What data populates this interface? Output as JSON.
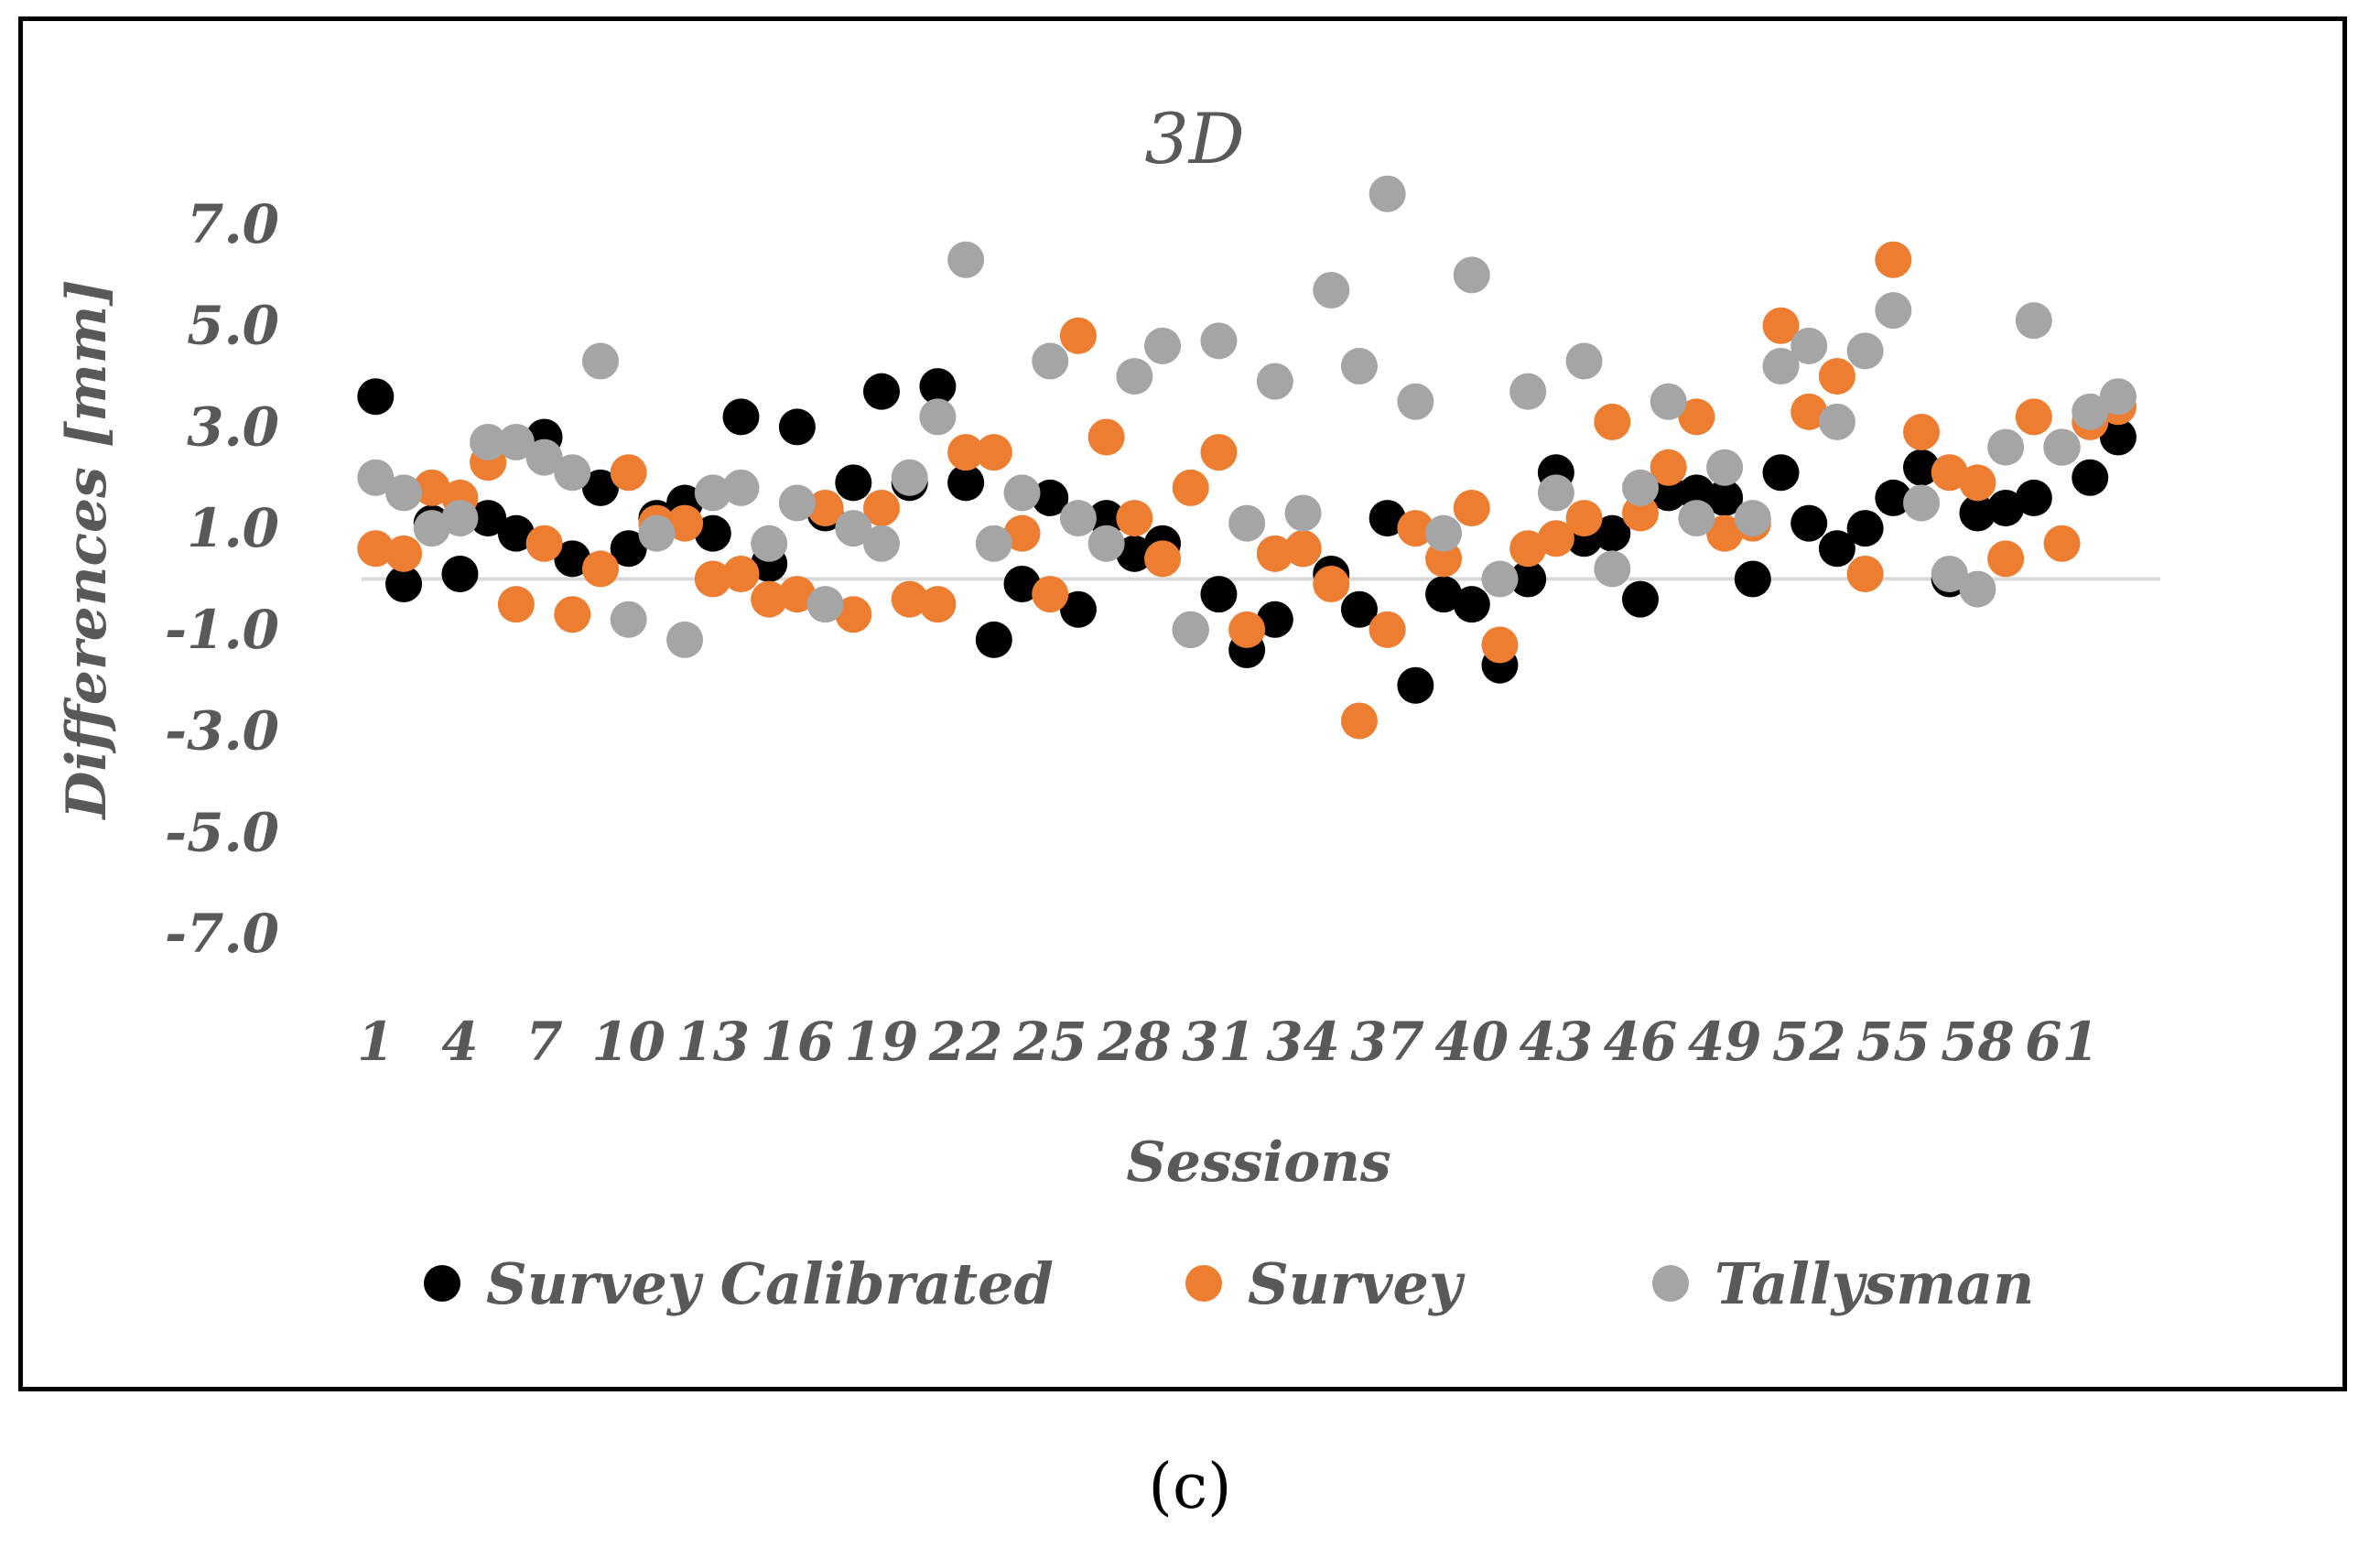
{
  "caption": "(c)",
  "chart_data": {
    "type": "scatter",
    "title": "3D",
    "xlabel": "Sessions",
    "ylabel": "Differences [mm]",
    "ylim": [
      -7.0,
      7.0
    ],
    "yticks": [
      "7.0",
      "5.0",
      "3.0",
      "1.0",
      "-1.0",
      "-3.0",
      "-5.0",
      "-7.0"
    ],
    "ytick_values": [
      7,
      5,
      3,
      1,
      -1,
      -3,
      -5,
      -7
    ],
    "xticks": [
      "1",
      "4",
      "7",
      "10",
      "13",
      "16",
      "19",
      "22",
      "25",
      "28",
      "31",
      "34",
      "37",
      "40",
      "43",
      "46",
      "49",
      "52",
      "55",
      "58",
      "61"
    ],
    "xtick_values": [
      1,
      4,
      7,
      10,
      13,
      16,
      19,
      22,
      25,
      28,
      31,
      34,
      37,
      40,
      43,
      46,
      49,
      52,
      55,
      58,
      61
    ],
    "xlim": [
      0.5,
      64.5
    ],
    "baseline": 0,
    "legend_position": "bottom",
    "series": [
      {
        "name": "Survey Calibrated",
        "color": "#000000",
        "points": [
          [
            1,
            3.6
          ],
          [
            2,
            -0.1
          ],
          [
            3,
            1.1
          ],
          [
            4,
            0.1
          ],
          [
            5,
            1.2
          ],
          [
            6,
            0.9
          ],
          [
            7,
            2.8
          ],
          [
            8,
            0.4
          ],
          [
            9,
            1.8
          ],
          [
            10,
            0.6
          ],
          [
            11,
            1.2
          ],
          [
            12,
            1.5
          ],
          [
            13,
            0.9
          ],
          [
            14,
            3.2
          ],
          [
            15,
            0.3
          ],
          [
            16,
            3.0
          ],
          [
            17,
            1.3
          ],
          [
            18,
            1.9
          ],
          [
            19,
            3.7
          ],
          [
            20,
            1.9
          ],
          [
            21,
            3.8
          ],
          [
            22,
            1.9
          ],
          [
            23,
            -1.2
          ],
          [
            24,
            -0.1
          ],
          [
            25,
            1.6
          ],
          [
            26,
            -0.6
          ],
          [
            27,
            1.2
          ],
          [
            28,
            0.5
          ],
          [
            29,
            0.7
          ],
          [
            30,
            -1.0
          ],
          [
            31,
            -0.3
          ],
          [
            32,
            -1.4
          ],
          [
            33,
            -0.8
          ],
          [
            34,
            0.6
          ],
          [
            35,
            0.1
          ],
          [
            36,
            -0.6
          ],
          [
            37,
            1.2
          ],
          [
            38,
            -2.1
          ],
          [
            39,
            -0.3
          ],
          [
            40,
            -0.5
          ],
          [
            41,
            -1.7
          ],
          [
            42,
            0.0
          ],
          [
            43,
            2.1
          ],
          [
            44,
            0.8
          ],
          [
            45,
            0.9
          ],
          [
            46,
            -0.4
          ],
          [
            47,
            1.7
          ],
          [
            48,
            1.7
          ],
          [
            49,
            1.6
          ],
          [
            50,
            0.0
          ],
          [
            51,
            2.1
          ],
          [
            52,
            1.1
          ],
          [
            53,
            0.6
          ],
          [
            54,
            1.0
          ],
          [
            55,
            1.6
          ],
          [
            56,
            2.2
          ],
          [
            57,
            0.0
          ],
          [
            58,
            1.3
          ],
          [
            59,
            1.4
          ],
          [
            60,
            1.6
          ],
          [
            61,
            2.6
          ],
          [
            62,
            2.0
          ],
          [
            63,
            2.8
          ]
        ]
      },
      {
        "name": "Survey",
        "color": "#ED7D31",
        "points": [
          [
            1,
            0.6
          ],
          [
            2,
            0.5
          ],
          [
            3,
            1.8
          ],
          [
            4,
            1.6
          ],
          [
            5,
            2.3
          ],
          [
            6,
            -0.5
          ],
          [
            7,
            0.7
          ],
          [
            8,
            -0.7
          ],
          [
            9,
            0.2
          ],
          [
            10,
            2.1
          ],
          [
            11,
            1.1
          ],
          [
            12,
            1.1
          ],
          [
            13,
            0.0
          ],
          [
            14,
            0.1
          ],
          [
            15,
            -0.4
          ],
          [
            16,
            -0.3
          ],
          [
            17,
            1.4
          ],
          [
            18,
            -0.7
          ],
          [
            19,
            1.4
          ],
          [
            20,
            -0.4
          ],
          [
            21,
            -0.5
          ],
          [
            22,
            2.5
          ],
          [
            23,
            2.5
          ],
          [
            24,
            0.9
          ],
          [
            25,
            -0.3
          ],
          [
            26,
            4.8
          ],
          [
            27,
            2.8
          ],
          [
            28,
            1.2
          ],
          [
            29,
            0.4
          ],
          [
            30,
            1.8
          ],
          [
            31,
            2.5
          ],
          [
            32,
            -1.0
          ],
          [
            33,
            0.5
          ],
          [
            34,
            0.6
          ],
          [
            35,
            -0.1
          ],
          [
            36,
            -2.8
          ],
          [
            37,
            -1.0
          ],
          [
            38,
            1.0
          ],
          [
            39,
            0.4
          ],
          [
            40,
            1.4
          ],
          [
            41,
            -1.3
          ],
          [
            42,
            0.6
          ],
          [
            43,
            0.8
          ],
          [
            44,
            1.2
          ],
          [
            45,
            3.1
          ],
          [
            46,
            1.3
          ],
          [
            47,
            2.2
          ],
          [
            48,
            3.2
          ],
          [
            49,
            0.9
          ],
          [
            50,
            1.1
          ],
          [
            51,
            5.0
          ],
          [
            52,
            3.3
          ],
          [
            53,
            4.0
          ],
          [
            54,
            0.1
          ],
          [
            55,
            6.3
          ],
          [
            56,
            2.9
          ],
          [
            57,
            2.1
          ],
          [
            58,
            1.9
          ],
          [
            59,
            0.4
          ],
          [
            60,
            3.2
          ],
          [
            61,
            0.7
          ],
          [
            62,
            3.1
          ],
          [
            63,
            3.4
          ]
        ]
      },
      {
        "name": "Tallysman",
        "color": "#A5A5A5",
        "points": [
          [
            1,
            2.0
          ],
          [
            2,
            1.7
          ],
          [
            3,
            1.0
          ],
          [
            4,
            1.2
          ],
          [
            5,
            2.7
          ],
          [
            6,
            2.7
          ],
          [
            7,
            2.4
          ],
          [
            8,
            2.1
          ],
          [
            9,
            4.3
          ],
          [
            10,
            -0.8
          ],
          [
            11,
            0.9
          ],
          [
            12,
            -1.2
          ],
          [
            13,
            1.7
          ],
          [
            14,
            1.8
          ],
          [
            15,
            0.7
          ],
          [
            16,
            1.5
          ],
          [
            17,
            -0.5
          ],
          [
            18,
            1.0
          ],
          [
            19,
            0.7
          ],
          [
            20,
            2.0
          ],
          [
            21,
            3.2
          ],
          [
            22,
            6.3
          ],
          [
            23,
            0.7
          ],
          [
            24,
            1.7
          ],
          [
            25,
            4.3
          ],
          [
            26,
            1.2
          ],
          [
            27,
            0.7
          ],
          [
            28,
            4.0
          ],
          [
            29,
            4.6
          ],
          [
            30,
            -1.0
          ],
          [
            31,
            4.7
          ],
          [
            32,
            1.1
          ],
          [
            33,
            3.9
          ],
          [
            34,
            1.3
          ],
          [
            35,
            5.7
          ],
          [
            36,
            4.2
          ],
          [
            37,
            7.6
          ],
          [
            38,
            3.5
          ],
          [
            39,
            0.9
          ],
          [
            40,
            6.0
          ],
          [
            41,
            0.0
          ],
          [
            42,
            3.7
          ],
          [
            43,
            1.7
          ],
          [
            44,
            4.3
          ],
          [
            45,
            0.2
          ],
          [
            46,
            1.8
          ],
          [
            47,
            3.5
          ],
          [
            48,
            1.2
          ],
          [
            49,
            2.2
          ],
          [
            50,
            1.2
          ],
          [
            51,
            4.2
          ],
          [
            52,
            4.6
          ],
          [
            53,
            3.1
          ],
          [
            54,
            4.5
          ],
          [
            55,
            5.3
          ],
          [
            56,
            1.5
          ],
          [
            57,
            0.1
          ],
          [
            58,
            -0.2
          ],
          [
            59,
            2.6
          ],
          [
            60,
            5.1
          ],
          [
            61,
            2.6
          ],
          [
            62,
            3.3
          ],
          [
            63,
            3.6
          ]
        ]
      }
    ]
  }
}
